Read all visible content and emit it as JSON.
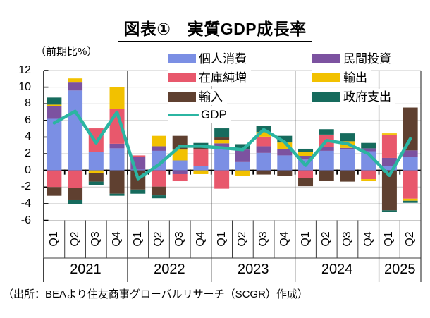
{
  "title": "図表①　実質GDP成長率",
  "unit_label": "（前期比%）",
  "source": "（出所：BEAより住友商事グローバルリサーチ（SCGR）作成）",
  "legend": {
    "columns": [
      [
        "個人消費",
        "在庫純増",
        "輸入",
        "GDP"
      ],
      [
        "民間投資",
        "輸出",
        "政府支出"
      ]
    ]
  },
  "colors": {
    "grid": "#c9c9c9",
    "axis": "#000000",
    "separator": "#3f3f3f",
    "background": "#ffffff"
  },
  "chart_data": {
    "type": "bar",
    "stacked": true,
    "title": "図表①　実質GDP成長率",
    "ylabel": "（前期比%）",
    "ylim": [
      -6,
      12
    ],
    "y_ticks": [
      12,
      10,
      8,
      6,
      4,
      2,
      0,
      -2,
      -4,
      -6
    ],
    "grid": true,
    "legend_position": "top-inside",
    "x_groups": [
      {
        "year": "2021",
        "quarters": [
          "Q1",
          "Q2",
          "Q3",
          "Q4"
        ]
      },
      {
        "year": "2022",
        "quarters": [
          "Q1",
          "Q2",
          "Q3",
          "Q4"
        ]
      },
      {
        "year": "2023",
        "quarters": [
          "Q1",
          "Q2",
          "Q3",
          "Q4"
        ]
      },
      {
        "year": "2024",
        "quarters": [
          "Q1",
          "Q2",
          "Q3",
          "Q4"
        ]
      },
      {
        "year": "2025",
        "quarters": [
          "Q1",
          "Q2"
        ]
      }
    ],
    "series": [
      {
        "name": "個人消費",
        "color": "#7b8fe4",
        "values": [
          6.2,
          9.6,
          2.2,
          2.65,
          0.1,
          2.35,
          1.2,
          0.55,
          2.65,
          1.0,
          2.1,
          1.8,
          1.3,
          2.35,
          2.5,
          2.3,
          0.55,
          1.65
        ]
      },
      {
        "name": "民間投資",
        "color": "#7c52a0",
        "values": [
          1.5,
          0.95,
          0,
          0.55,
          1.5,
          0.55,
          -0.45,
          0,
          0.6,
          1.5,
          0.8,
          0.8,
          0.45,
          0.5,
          0.2,
          0.35,
          0.95,
          0.75
        ]
      },
      {
        "name": "在庫純増",
        "color": "#e8586c",
        "values": [
          -2.0,
          -2.1,
          2.85,
          4.15,
          0.2,
          -1.95,
          -0.85,
          1.95,
          -2.2,
          0,
          1.15,
          0,
          -0.9,
          1.45,
          0,
          -1.05,
          2.8,
          -3.4
        ]
      },
      {
        "name": "輸出",
        "color": "#f2c100",
        "values": [
          0.2,
          0.5,
          -0.3,
          2.7,
          0,
          1.25,
          1.3,
          -0.45,
          0.45,
          -0.7,
          0.55,
          0.75,
          0.45,
          0,
          0.8,
          -0.25,
          0.15,
          -0.25
        ]
      },
      {
        "name": "輸入",
        "color": "#5f4030",
        "values": [
          -1.05,
          -1.4,
          -1.05,
          -2.8,
          -2.3,
          -1.05,
          1.65,
          0.45,
          0.25,
          0,
          -0.5,
          -0.7,
          -1.0,
          -1.25,
          -1.35,
          0,
          -4.8,
          5.15
        ]
      },
      {
        "name": "政府支出",
        "color": "#166b5d",
        "values": [
          0.85,
          -0.55,
          -0.4,
          -0.25,
          -0.5,
          -0.35,
          0,
          0.35,
          1.1,
          0.65,
          0.75,
          0.8,
          0.4,
          0.65,
          0.95,
          0.65,
          -0.2,
          -0.25
        ]
      }
    ],
    "line": {
      "name": "GDP",
      "color": "#2bb5a2",
      "values": [
        5.7,
        7.1,
        3.3,
        7.0,
        -1.0,
        0.7,
        2.9,
        2.9,
        2.7,
        2.5,
        4.9,
        3.4,
        0.6,
        3.6,
        3.2,
        2.0,
        -0.6,
        3.8
      ]
    }
  }
}
